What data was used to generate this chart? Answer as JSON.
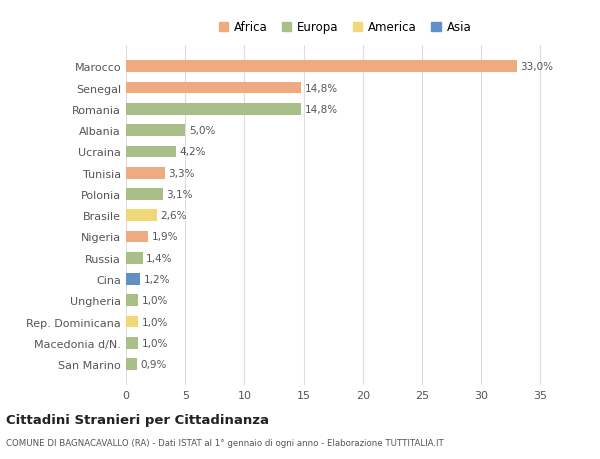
{
  "countries": [
    "Marocco",
    "Senegal",
    "Romania",
    "Albania",
    "Ucraina",
    "Tunisia",
    "Polonia",
    "Brasile",
    "Nigeria",
    "Russia",
    "Cina",
    "Ungheria",
    "Rep. Dominicana",
    "Macedonia d/N.",
    "San Marino"
  ],
  "values": [
    33.0,
    14.8,
    14.8,
    5.0,
    4.2,
    3.3,
    3.1,
    2.6,
    1.9,
    1.4,
    1.2,
    1.0,
    1.0,
    1.0,
    0.9
  ],
  "labels": [
    "33,0%",
    "14,8%",
    "14,8%",
    "5,0%",
    "4,2%",
    "3,3%",
    "3,1%",
    "2,6%",
    "1,9%",
    "1,4%",
    "1,2%",
    "1,0%",
    "1,0%",
    "1,0%",
    "0,9%"
  ],
  "continents": [
    "Africa",
    "Africa",
    "Europa",
    "Europa",
    "Europa",
    "Africa",
    "Europa",
    "America",
    "Africa",
    "Europa",
    "Asia",
    "Europa",
    "America",
    "Europa",
    "Europa"
  ],
  "colors": {
    "Africa": "#F0AA80",
    "Europa": "#A8C088",
    "America": "#F0D878",
    "Asia": "#6090C8"
  },
  "legend_order": [
    "Africa",
    "Europa",
    "America",
    "Asia"
  ],
  "title": "Cittadini Stranieri per Cittadinanza",
  "subtitle": "COMUNE DI BAGNACAVALLO (RA) - Dati ISTAT al 1° gennaio di ogni anno - Elaborazione TUTTITALIA.IT",
  "xlim": [
    0,
    37
  ],
  "xticks": [
    0,
    5,
    10,
    15,
    20,
    25,
    30,
    35
  ],
  "bg_color": "#ffffff",
  "plot_bg_color": "#ffffff",
  "grid_color": "#dddddd"
}
